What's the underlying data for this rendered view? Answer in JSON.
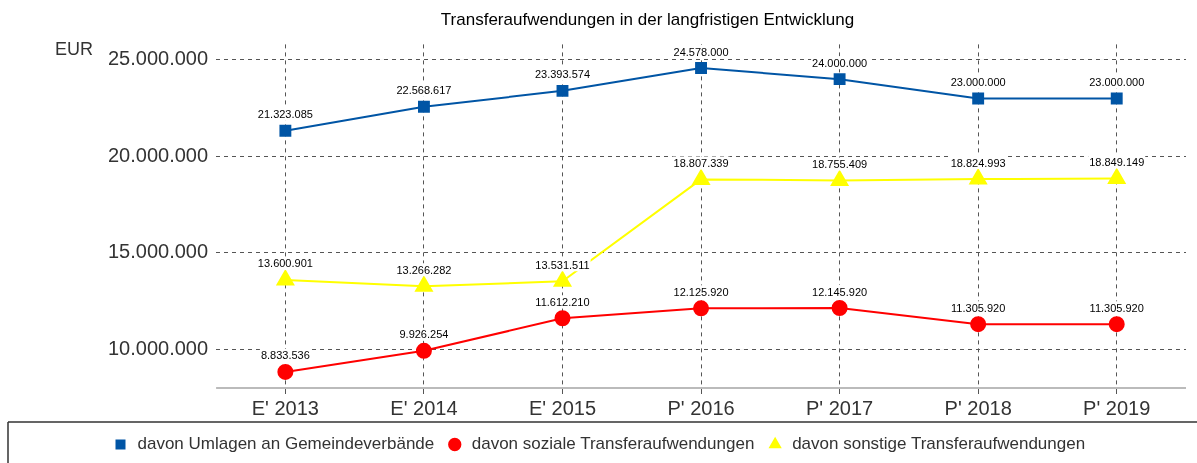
{
  "chart_data": {
    "type": "line",
    "title": "Transferaufwendungen in der langfristigen Entwicklung",
    "ylabel": "EUR",
    "categories": [
      "E' 2013",
      "E' 2014",
      "E' 2015",
      "P' 2016",
      "P' 2017",
      "P' 2018",
      "P' 2019"
    ],
    "series": [
      {
        "name": "davon Umlagen an Gemeindeverbände",
        "color": "#0055a5",
        "marker": "square",
        "values": [
          21323085,
          22568617,
          23393574,
          24578000,
          24000000,
          23000000,
          23000000
        ],
        "value_labels": [
          "21.323.085",
          "22.568.617",
          "23.393.574",
          "24.578.000",
          "24.000.000",
          "23.000.000",
          "23.000.000"
        ]
      },
      {
        "name": "davon soziale Transferaufwendungen",
        "color": "#ff0000",
        "marker": "circle",
        "values": [
          8833536,
          9926254,
          11612210,
          12125920,
          12145920,
          11305920,
          11305920
        ],
        "value_labels": [
          "8.833.536",
          "9.926.254",
          "11.612.210",
          "12.125.920",
          "12.145.920",
          "11.305.920",
          "11.305.920"
        ]
      },
      {
        "name": "davon sonstige Transferaufwendungen",
        "color": "#ffff00",
        "marker": "triangle",
        "values": [
          13600901,
          13266282,
          13531511,
          18807339,
          18755409,
          18824993,
          18849149
        ],
        "value_labels": [
          "13.600.901",
          "13.266.282",
          "13.531.511",
          "18.807.339",
          "18.755.409",
          "18.824.993",
          "18.849.149"
        ]
      }
    ],
    "ylim": [
      8000000,
      25800000
    ],
    "yticks": [
      {
        "value": 10000000,
        "label": "10.000.000"
      },
      {
        "value": 15000000,
        "label": "15.000.000"
      },
      {
        "value": 20000000,
        "label": "20.000.000"
      },
      {
        "value": 25000000,
        "label": "25.000.000"
      }
    ],
    "grid": true,
    "legend": "bottom",
    "line_style": "solid"
  }
}
